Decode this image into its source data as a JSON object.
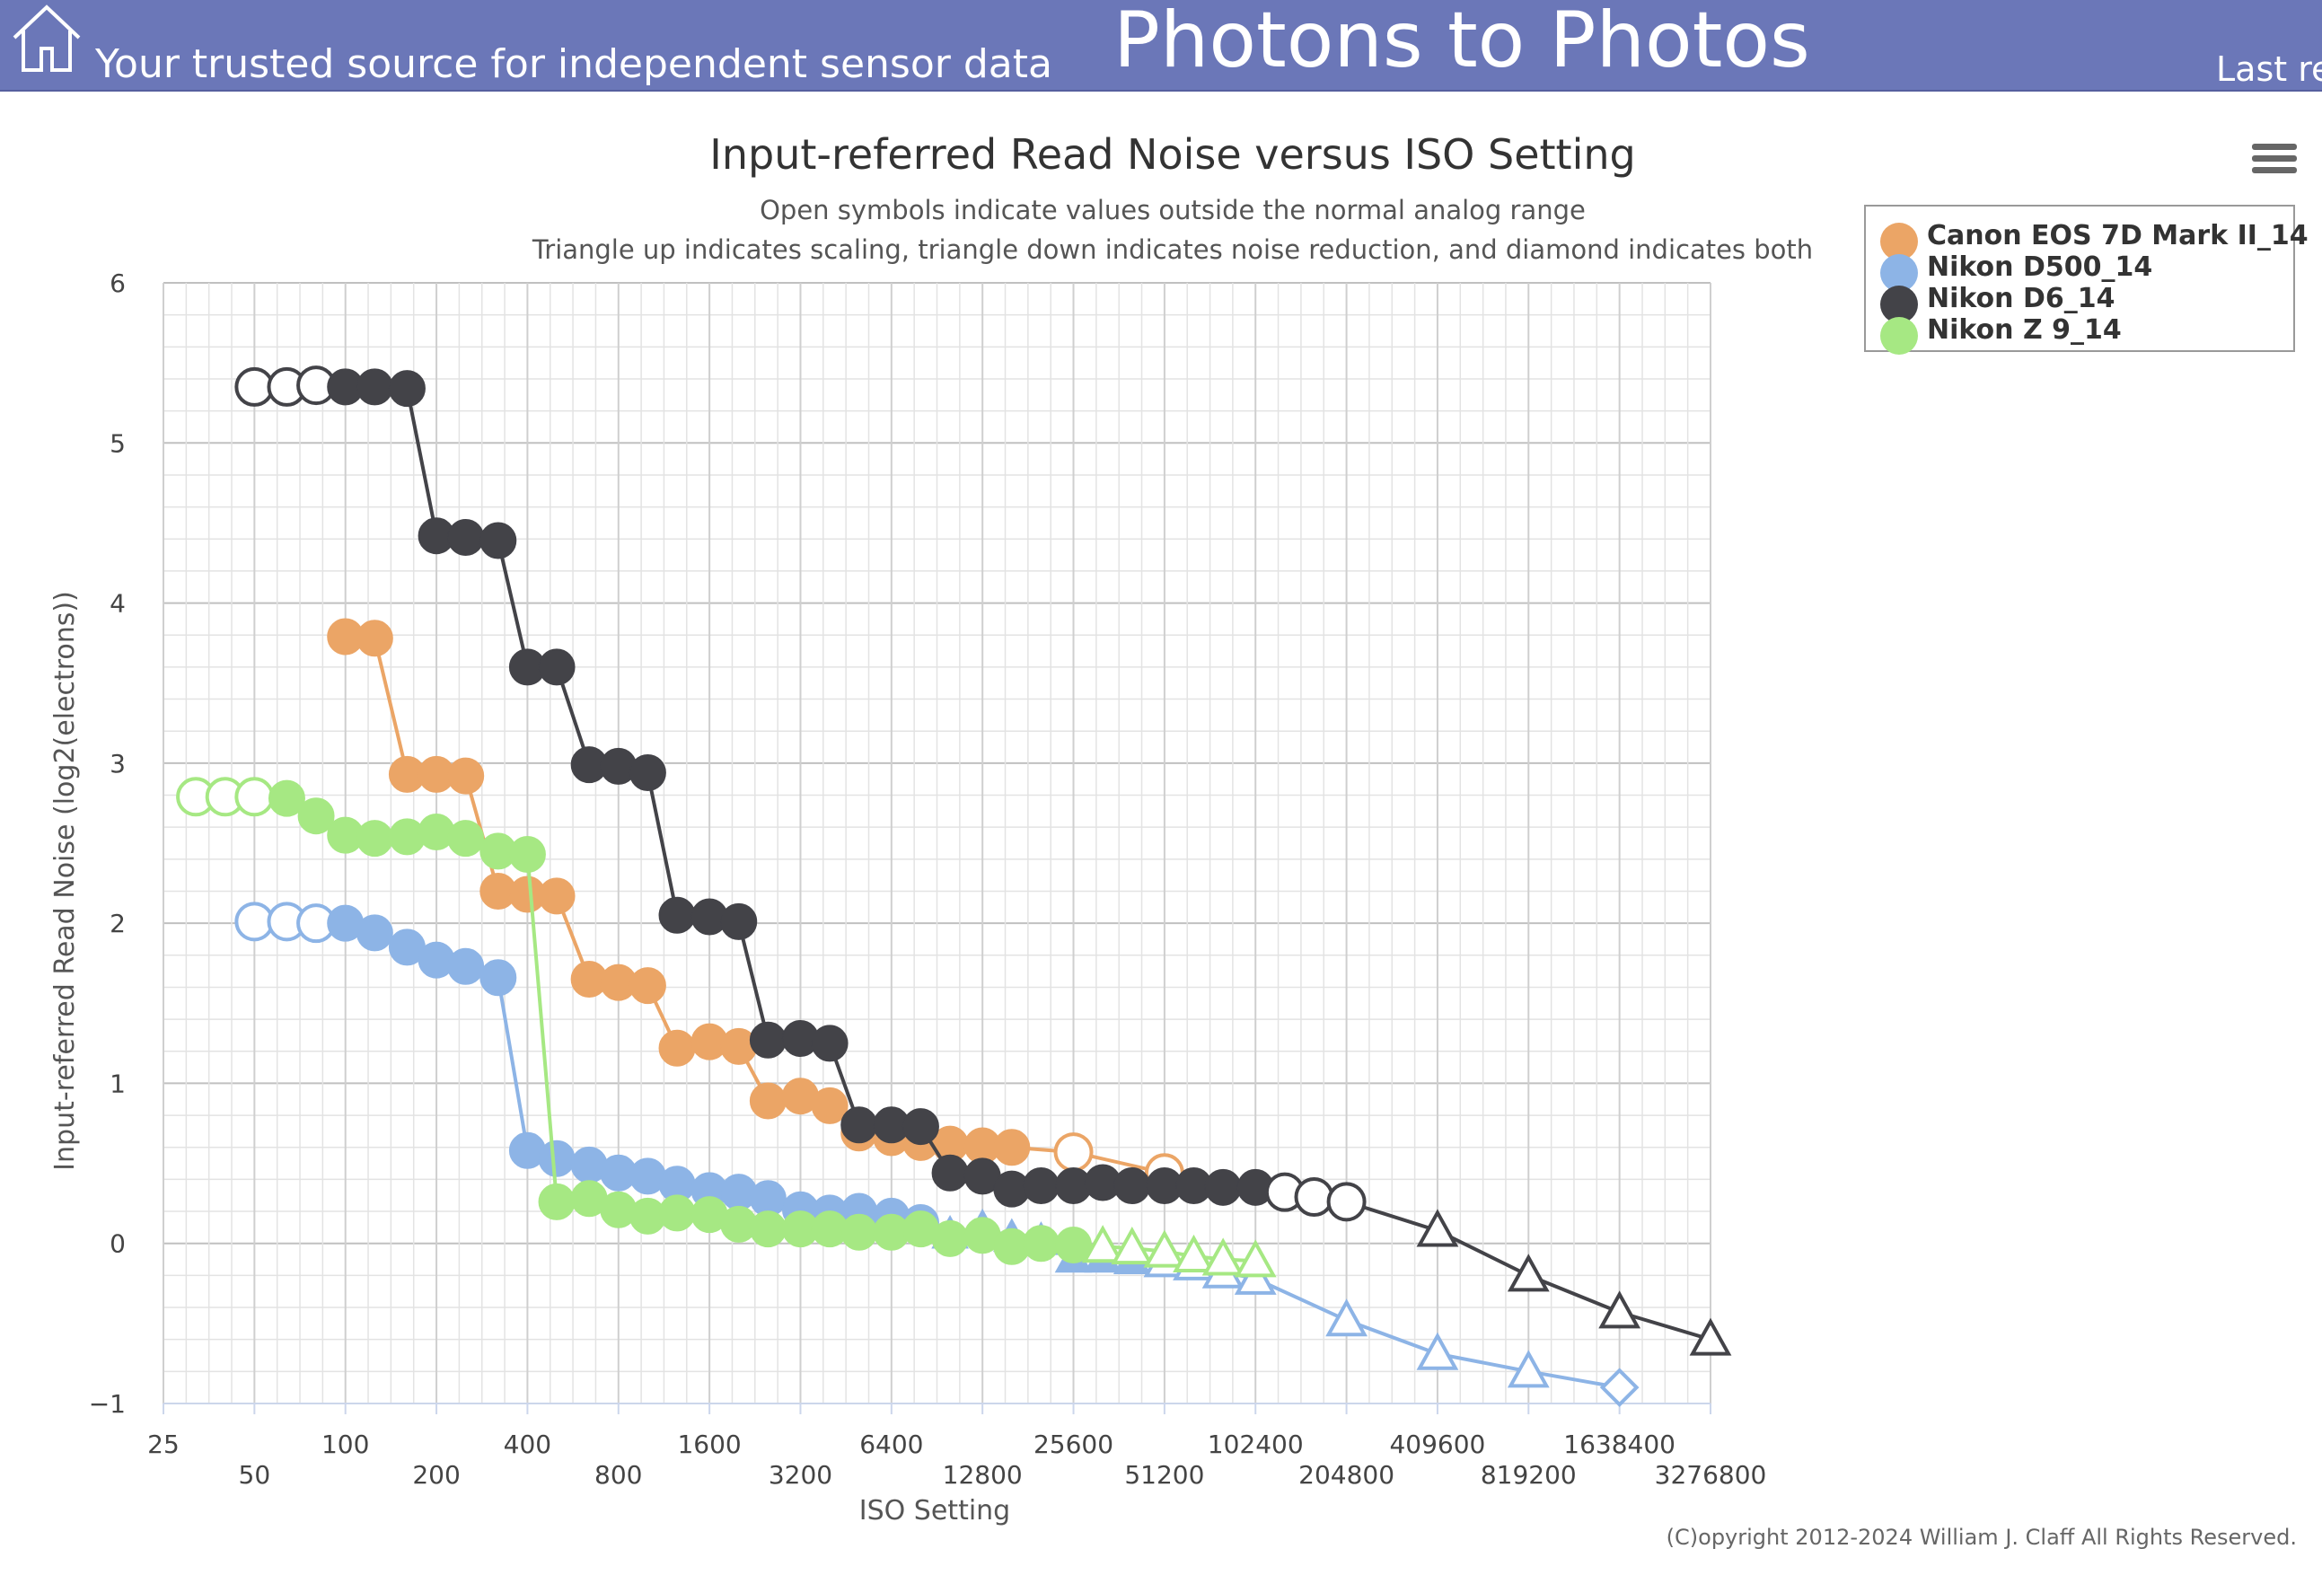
{
  "header": {
    "tagline": "Your trusted source for independent sensor data",
    "site_title": "Photons to Photos",
    "right_text": "Last re",
    "home_icon": "home-icon"
  },
  "menu": {
    "icon": "hamburger-menu-icon"
  },
  "copyright": "(C)opyright 2012-2024 William J. Claff All Rights Reserved.",
  "chart_data": {
    "type": "line",
    "title": "Input-referred Read Noise versus ISO Setting",
    "subtitle": [
      "Open symbols indicate values outside the normal analog range",
      "Triangle up indicates scaling, triangle down indicates noise reduction, and diamond indicates both"
    ],
    "xlabel": "ISO Setting",
    "ylabel": "Input-referred Read Noise (log2(electrons))",
    "x_scale": "log2",
    "xlim": [
      25,
      3276800
    ],
    "ylim": [
      -1,
      6
    ],
    "x_ticks": [
      25,
      50,
      100,
      200,
      400,
      800,
      1600,
      3200,
      6400,
      12800,
      25600,
      51200,
      102400,
      204800,
      409600,
      819200,
      1638400,
      3276800
    ],
    "y_ticks": [
      -1,
      0,
      1,
      2,
      3,
      4,
      5,
      6
    ],
    "grid": true,
    "legend_position": "top-right",
    "series": [
      {
        "name": "Canon EOS 7D Mark II_14",
        "color": "#eba566",
        "points": [
          {
            "x": 100,
            "y": 3.79,
            "open": false,
            "shape": "circle"
          },
          {
            "x": 125,
            "y": 3.78,
            "open": false,
            "shape": "circle"
          },
          {
            "x": 160,
            "y": 2.93,
            "open": false,
            "shape": "circle"
          },
          {
            "x": 200,
            "y": 2.93,
            "open": false,
            "shape": "circle"
          },
          {
            "x": 250,
            "y": 2.92,
            "open": false,
            "shape": "circle"
          },
          {
            "x": 320,
            "y": 2.2,
            "open": false,
            "shape": "circle"
          },
          {
            "x": 400,
            "y": 2.18,
            "open": false,
            "shape": "circle"
          },
          {
            "x": 500,
            "y": 2.17,
            "open": false,
            "shape": "circle"
          },
          {
            "x": 640,
            "y": 1.65,
            "open": false,
            "shape": "circle"
          },
          {
            "x": 800,
            "y": 1.63,
            "open": false,
            "shape": "circle"
          },
          {
            "x": 1000,
            "y": 1.61,
            "open": false,
            "shape": "circle"
          },
          {
            "x": 1250,
            "y": 1.22,
            "open": false,
            "shape": "circle"
          },
          {
            "x": 1600,
            "y": 1.26,
            "open": false,
            "shape": "circle"
          },
          {
            "x": 2000,
            "y": 1.23,
            "open": false,
            "shape": "circle"
          },
          {
            "x": 2500,
            "y": 0.89,
            "open": false,
            "shape": "circle"
          },
          {
            "x": 3200,
            "y": 0.92,
            "open": false,
            "shape": "circle"
          },
          {
            "x": 4000,
            "y": 0.86,
            "open": false,
            "shape": "circle"
          },
          {
            "x": 5000,
            "y": 0.69,
            "open": false,
            "shape": "circle"
          },
          {
            "x": 6400,
            "y": 0.66,
            "open": false,
            "shape": "circle"
          },
          {
            "x": 8000,
            "y": 0.63,
            "open": false,
            "shape": "circle"
          },
          {
            "x": 10000,
            "y": 0.62,
            "open": false,
            "shape": "circle"
          },
          {
            "x": 12800,
            "y": 0.61,
            "open": false,
            "shape": "circle"
          },
          {
            "x": 16000,
            "y": 0.6,
            "open": false,
            "shape": "circle"
          },
          {
            "x": 25600,
            "y": 0.57,
            "open": true,
            "shape": "circle"
          },
          {
            "x": 51200,
            "y": 0.44,
            "open": true,
            "shape": "circle"
          }
        ]
      },
      {
        "name": "Nikon D500_14",
        "color": "#8db4e6",
        "points": [
          {
            "x": 50,
            "y": 2.01,
            "open": true,
            "shape": "circle"
          },
          {
            "x": 64,
            "y": 2.01,
            "open": true,
            "shape": "circle"
          },
          {
            "x": 80,
            "y": 2.0,
            "open": true,
            "shape": "circle"
          },
          {
            "x": 100,
            "y": 2.0,
            "open": false,
            "shape": "circle"
          },
          {
            "x": 125,
            "y": 1.94,
            "open": false,
            "shape": "circle"
          },
          {
            "x": 160,
            "y": 1.85,
            "open": false,
            "shape": "circle"
          },
          {
            "x": 200,
            "y": 1.77,
            "open": false,
            "shape": "circle"
          },
          {
            "x": 250,
            "y": 1.73,
            "open": false,
            "shape": "circle"
          },
          {
            "x": 320,
            "y": 1.66,
            "open": false,
            "shape": "circle"
          },
          {
            "x": 400,
            "y": 0.58,
            "open": false,
            "shape": "circle"
          },
          {
            "x": 500,
            "y": 0.53,
            "open": false,
            "shape": "circle"
          },
          {
            "x": 640,
            "y": 0.49,
            "open": false,
            "shape": "circle"
          },
          {
            "x": 800,
            "y": 0.44,
            "open": false,
            "shape": "circle"
          },
          {
            "x": 1000,
            "y": 0.42,
            "open": false,
            "shape": "circle"
          },
          {
            "x": 1250,
            "y": 0.37,
            "open": false,
            "shape": "circle"
          },
          {
            "x": 1600,
            "y": 0.33,
            "open": false,
            "shape": "circle"
          },
          {
            "x": 2000,
            "y": 0.32,
            "open": false,
            "shape": "circle"
          },
          {
            "x": 2500,
            "y": 0.28,
            "open": false,
            "shape": "circle"
          },
          {
            "x": 3200,
            "y": 0.21,
            "open": false,
            "shape": "circle"
          },
          {
            "x": 4000,
            "y": 0.19,
            "open": false,
            "shape": "circle"
          },
          {
            "x": 5000,
            "y": 0.2,
            "open": false,
            "shape": "circle"
          },
          {
            "x": 6400,
            "y": 0.17,
            "open": false,
            "shape": "circle"
          },
          {
            "x": 8000,
            "y": 0.13,
            "open": false,
            "shape": "circle"
          },
          {
            "x": 10000,
            "y": 0.06,
            "open": false,
            "shape": "triangle-up"
          },
          {
            "x": 12800,
            "y": 0.1,
            "open": false,
            "shape": "triangle-up"
          },
          {
            "x": 16000,
            "y": 0.04,
            "open": false,
            "shape": "triangle-up"
          },
          {
            "x": 20000,
            "y": 0.02,
            "open": false,
            "shape": "triangle-up"
          },
          {
            "x": 25600,
            "y": -0.09,
            "open": false,
            "shape": "triangle-up"
          },
          {
            "x": 32000,
            "y": -0.09,
            "open": false,
            "shape": "triangle-up"
          },
          {
            "x": 40000,
            "y": -0.1,
            "open": false,
            "shape": "triangle-up"
          },
          {
            "x": 51200,
            "y": -0.11,
            "open": true,
            "shape": "triangle-up"
          },
          {
            "x": 64000,
            "y": -0.13,
            "open": true,
            "shape": "triangle-up"
          },
          {
            "x": 80000,
            "y": -0.18,
            "open": true,
            "shape": "triangle-up"
          },
          {
            "x": 102400,
            "y": -0.22,
            "open": true,
            "shape": "triangle-up"
          },
          {
            "x": 204800,
            "y": -0.48,
            "open": true,
            "shape": "triangle-up"
          },
          {
            "x": 409600,
            "y": -0.69,
            "open": true,
            "shape": "triangle-up"
          },
          {
            "x": 819200,
            "y": -0.8,
            "open": true,
            "shape": "triangle-up"
          },
          {
            "x": 1638400,
            "y": -0.9,
            "open": true,
            "shape": "diamond"
          }
        ]
      },
      {
        "name": "Nikon D6_14",
        "color": "#434348",
        "points": [
          {
            "x": 50,
            "y": 5.35,
            "open": true,
            "shape": "circle"
          },
          {
            "x": 64,
            "y": 5.35,
            "open": true,
            "shape": "circle"
          },
          {
            "x": 80,
            "y": 5.36,
            "open": true,
            "shape": "circle"
          },
          {
            "x": 100,
            "y": 5.35,
            "open": false,
            "shape": "circle"
          },
          {
            "x": 125,
            "y": 5.35,
            "open": false,
            "shape": "circle"
          },
          {
            "x": 160,
            "y": 5.34,
            "open": false,
            "shape": "circle"
          },
          {
            "x": 200,
            "y": 4.42,
            "open": false,
            "shape": "circle"
          },
          {
            "x": 250,
            "y": 4.41,
            "open": false,
            "shape": "circle"
          },
          {
            "x": 320,
            "y": 4.39,
            "open": false,
            "shape": "circle"
          },
          {
            "x": 400,
            "y": 3.6,
            "open": false,
            "shape": "circle"
          },
          {
            "x": 500,
            "y": 3.6,
            "open": false,
            "shape": "circle"
          },
          {
            "x": 640,
            "y": 2.99,
            "open": false,
            "shape": "circle"
          },
          {
            "x": 800,
            "y": 2.98,
            "open": false,
            "shape": "circle"
          },
          {
            "x": 1000,
            "y": 2.94,
            "open": false,
            "shape": "circle"
          },
          {
            "x": 1250,
            "y": 2.05,
            "open": false,
            "shape": "circle"
          },
          {
            "x": 1600,
            "y": 2.04,
            "open": false,
            "shape": "circle"
          },
          {
            "x": 2000,
            "y": 2.01,
            "open": false,
            "shape": "circle"
          },
          {
            "x": 2500,
            "y": 1.27,
            "open": false,
            "shape": "circle"
          },
          {
            "x": 3200,
            "y": 1.28,
            "open": false,
            "shape": "circle"
          },
          {
            "x": 4000,
            "y": 1.25,
            "open": false,
            "shape": "circle"
          },
          {
            "x": 5000,
            "y": 0.74,
            "open": false,
            "shape": "circle"
          },
          {
            "x": 6400,
            "y": 0.74,
            "open": false,
            "shape": "circle"
          },
          {
            "x": 8000,
            "y": 0.73,
            "open": false,
            "shape": "circle"
          },
          {
            "x": 10000,
            "y": 0.44,
            "open": false,
            "shape": "circle"
          },
          {
            "x": 12800,
            "y": 0.42,
            "open": false,
            "shape": "circle"
          },
          {
            "x": 16000,
            "y": 0.34,
            "open": false,
            "shape": "circle"
          },
          {
            "x": 20000,
            "y": 0.36,
            "open": false,
            "shape": "circle"
          },
          {
            "x": 25600,
            "y": 0.36,
            "open": false,
            "shape": "circle"
          },
          {
            "x": 32000,
            "y": 0.38,
            "open": false,
            "shape": "circle"
          },
          {
            "x": 40000,
            "y": 0.36,
            "open": false,
            "shape": "circle"
          },
          {
            "x": 51200,
            "y": 0.36,
            "open": false,
            "shape": "circle"
          },
          {
            "x": 64000,
            "y": 0.36,
            "open": false,
            "shape": "circle"
          },
          {
            "x": 80000,
            "y": 0.35,
            "open": false,
            "shape": "circle"
          },
          {
            "x": 102400,
            "y": 0.35,
            "open": false,
            "shape": "circle"
          },
          {
            "x": 128000,
            "y": 0.32,
            "open": true,
            "shape": "circle"
          },
          {
            "x": 160000,
            "y": 0.29,
            "open": true,
            "shape": "circle"
          },
          {
            "x": 204800,
            "y": 0.26,
            "open": true,
            "shape": "circle"
          },
          {
            "x": 409600,
            "y": 0.08,
            "open": true,
            "shape": "triangle-up"
          },
          {
            "x": 819200,
            "y": -0.2,
            "open": true,
            "shape": "triangle-up"
          },
          {
            "x": 1638400,
            "y": -0.43,
            "open": true,
            "shape": "triangle-up"
          },
          {
            "x": 3276800,
            "y": -0.6,
            "open": true,
            "shape": "triangle-up"
          }
        ]
      },
      {
        "name": "Nikon Z 9_14",
        "color": "#a6e883",
        "points": [
          {
            "x": 32,
            "y": 2.79,
            "open": true,
            "shape": "circle"
          },
          {
            "x": 40,
            "y": 2.79,
            "open": true,
            "shape": "circle"
          },
          {
            "x": 50,
            "y": 2.79,
            "open": true,
            "shape": "circle"
          },
          {
            "x": 64,
            "y": 2.78,
            "open": false,
            "shape": "circle"
          },
          {
            "x": 80,
            "y": 2.67,
            "open": false,
            "shape": "circle"
          },
          {
            "x": 100,
            "y": 2.55,
            "open": false,
            "shape": "circle"
          },
          {
            "x": 125,
            "y": 2.53,
            "open": false,
            "shape": "circle"
          },
          {
            "x": 160,
            "y": 2.54,
            "open": false,
            "shape": "circle"
          },
          {
            "x": 200,
            "y": 2.57,
            "open": false,
            "shape": "circle"
          },
          {
            "x": 250,
            "y": 2.53,
            "open": false,
            "shape": "circle"
          },
          {
            "x": 320,
            "y": 2.45,
            "open": false,
            "shape": "circle"
          },
          {
            "x": 400,
            "y": 2.43,
            "open": false,
            "shape": "circle"
          },
          {
            "x": 500,
            "y": 0.26,
            "open": false,
            "shape": "circle"
          },
          {
            "x": 640,
            "y": 0.28,
            "open": false,
            "shape": "circle"
          },
          {
            "x": 800,
            "y": 0.21,
            "open": false,
            "shape": "circle"
          },
          {
            "x": 1000,
            "y": 0.17,
            "open": false,
            "shape": "circle"
          },
          {
            "x": 1250,
            "y": 0.19,
            "open": false,
            "shape": "circle"
          },
          {
            "x": 1600,
            "y": 0.18,
            "open": false,
            "shape": "circle"
          },
          {
            "x": 2000,
            "y": 0.12,
            "open": false,
            "shape": "circle"
          },
          {
            "x": 2500,
            "y": 0.09,
            "open": false,
            "shape": "circle"
          },
          {
            "x": 3200,
            "y": 0.09,
            "open": false,
            "shape": "circle"
          },
          {
            "x": 4000,
            "y": 0.09,
            "open": false,
            "shape": "circle"
          },
          {
            "x": 5000,
            "y": 0.07,
            "open": false,
            "shape": "circle"
          },
          {
            "x": 6400,
            "y": 0.07,
            "open": false,
            "shape": "circle"
          },
          {
            "x": 8000,
            "y": 0.09,
            "open": false,
            "shape": "circle"
          },
          {
            "x": 10000,
            "y": 0.03,
            "open": false,
            "shape": "circle"
          },
          {
            "x": 12800,
            "y": 0.05,
            "open": false,
            "shape": "circle"
          },
          {
            "x": 16000,
            "y": -0.02,
            "open": false,
            "shape": "circle"
          },
          {
            "x": 20000,
            "y": 0.0,
            "open": false,
            "shape": "circle"
          },
          {
            "x": 25600,
            "y": -0.01,
            "open": false,
            "shape": "circle"
          },
          {
            "x": 32000,
            "y": -0.02,
            "open": true,
            "shape": "triangle-up"
          },
          {
            "x": 40000,
            "y": -0.03,
            "open": true,
            "shape": "triangle-up"
          },
          {
            "x": 51200,
            "y": -0.05,
            "open": true,
            "shape": "triangle-up"
          },
          {
            "x": 64000,
            "y": -0.08,
            "open": true,
            "shape": "triangle-up"
          },
          {
            "x": 80000,
            "y": -0.1,
            "open": true,
            "shape": "triangle-up"
          },
          {
            "x": 102400,
            "y": -0.11,
            "open": true,
            "shape": "triangle-up"
          }
        ]
      }
    ]
  }
}
